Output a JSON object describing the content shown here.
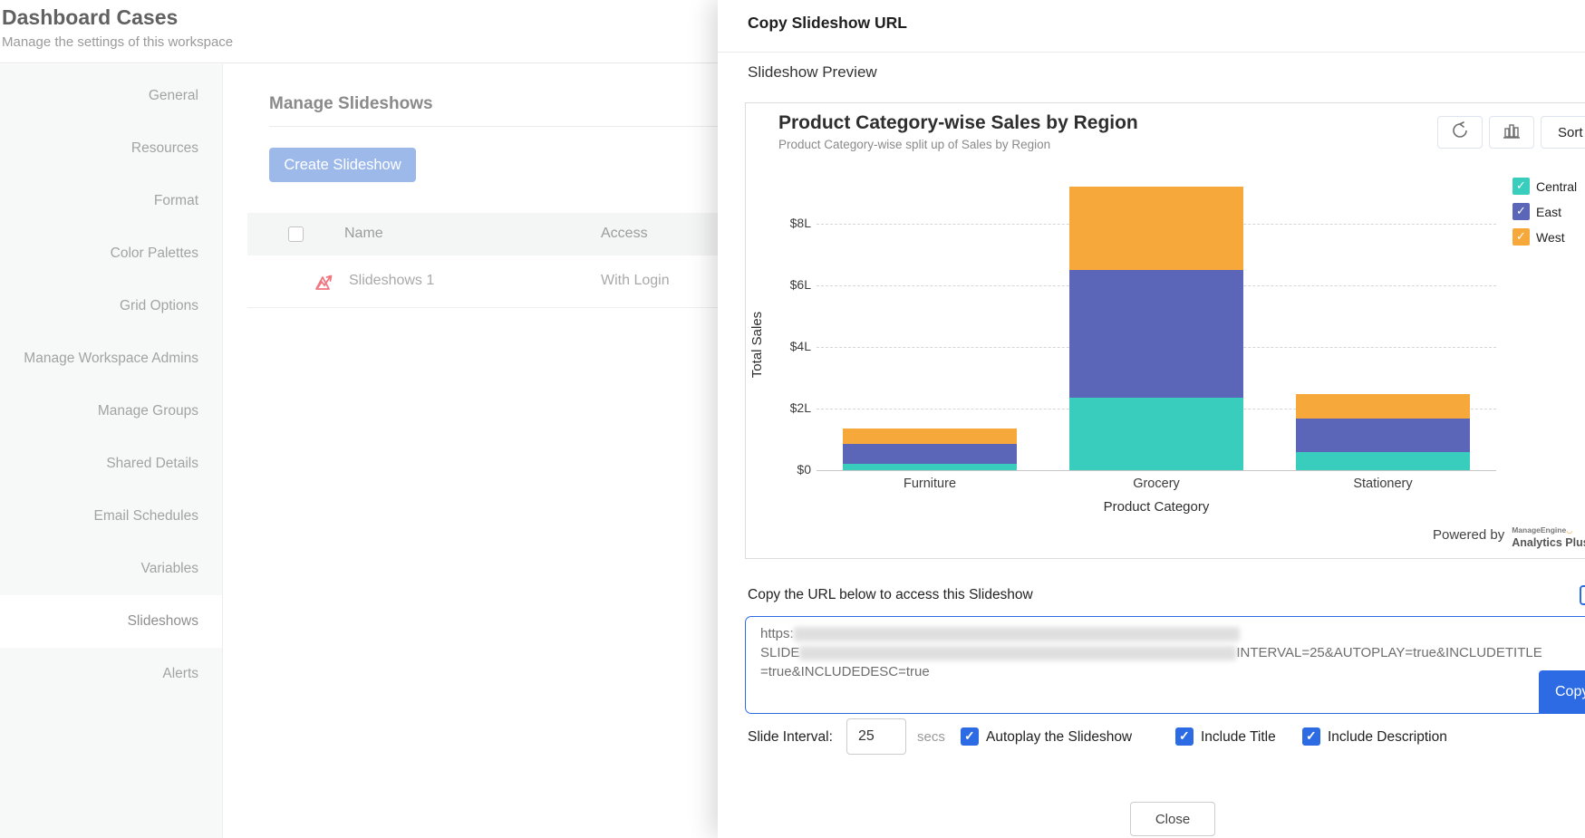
{
  "page": {
    "title": "Dashboard Cases",
    "subtitle": "Manage the settings of this workspace"
  },
  "sidebar": {
    "items": [
      {
        "label": "General",
        "active": false
      },
      {
        "label": "Resources",
        "active": false
      },
      {
        "label": "Format",
        "active": false
      },
      {
        "label": "Color Palettes",
        "active": false
      },
      {
        "label": "Grid Options",
        "active": false
      },
      {
        "label": "Manage Workspace Admins",
        "active": false
      },
      {
        "label": "Manage Groups",
        "active": false
      },
      {
        "label": "Shared Details",
        "active": false
      },
      {
        "label": "Email Schedules",
        "active": false
      },
      {
        "label": "Variables",
        "active": false
      },
      {
        "label": "Slideshows",
        "active": true
      },
      {
        "label": "Alerts",
        "active": false
      }
    ]
  },
  "main": {
    "heading": "Manage Slideshows",
    "create_button": "Create Slideshow",
    "table": {
      "columns": [
        "Name",
        "Access"
      ],
      "rows": [
        {
          "name": "Slideshows 1",
          "access": "With Login",
          "icon": "slideshow-chart-icon"
        }
      ]
    }
  },
  "modal": {
    "title": "Copy Slideshow URL",
    "preview_heading": "Slideshow Preview",
    "toolbar": {
      "refresh_icon": "refresh-icon",
      "chart_type_icon": "bar-chart-icon",
      "sort_label": "Sort"
    },
    "powered_by": "Powered by",
    "brand_top": "ManageEngine",
    "brand_bottom": "Analytics Plus",
    "url_section": {
      "heading": "Copy the URL below to access this Slideshow",
      "url_line1_prefix": "https:",
      "url_line2_prefix": "SLIDE",
      "url_line2_suffix": "INTERVAL=25&AUTOPLAY=true&INCLUDETITLE",
      "url_line3": "=true&INCLUDEDESC=true",
      "copy_button": "Copy"
    },
    "controls": {
      "interval_label": "Slide Interval:",
      "interval_value": "25",
      "interval_unit": "secs",
      "autoplay_label": "Autoplay the Slideshow",
      "autoplay_checked": true,
      "include_title_label": "Include Title",
      "include_title_checked": true,
      "include_desc_label": "Include Description",
      "include_desc_checked": true
    },
    "close_button": "Close"
  },
  "chart_data": {
    "type": "bar",
    "stacked": true,
    "title": "Product Category-wise Sales by Region",
    "subtitle": "Product Category-wise split up of Sales by Region",
    "categories": [
      "Furniture",
      "Grocery",
      "Stationery"
    ],
    "series": [
      {
        "name": "Central",
        "color": "#38cdbc",
        "values": [
          0.2,
          2.35,
          0.6
        ]
      },
      {
        "name": "East",
        "color": "#5b66b9",
        "values": [
          0.65,
          4.15,
          1.1
        ]
      },
      {
        "name": "West",
        "color": "#f7a83a",
        "values": [
          0.5,
          2.7,
          0.8
        ]
      }
    ],
    "xlabel": "Product Category",
    "ylabel": "Total Sales",
    "yticks": [
      "$0",
      "$2L",
      "$4L",
      "$6L",
      "$8L"
    ],
    "ytick_values": [
      0,
      2,
      4,
      6,
      8
    ],
    "ylim": [
      0,
      9.6
    ],
    "units": "L (lakhs of $)",
    "grid": "dashed horizontal",
    "legend_position": "right"
  }
}
